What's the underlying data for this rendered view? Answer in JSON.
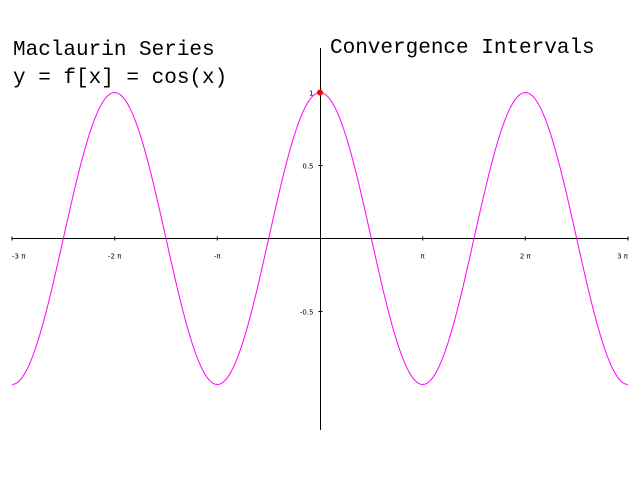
{
  "header": {
    "title_line1": "Maclaurin Series",
    "title_line2": "y = f[x] = cos(x)",
    "right_title": "Convergence Intervals"
  },
  "chart_data": {
    "type": "line",
    "function": "cos(x)",
    "xlim": [
      -9.42478,
      9.42478
    ],
    "ylim": [
      -1.3,
      1.3
    ],
    "x_ticks": [
      {
        "value": -9.42478,
        "label": "-3 π"
      },
      {
        "value": -6.28319,
        "label": "-2 π"
      },
      {
        "value": -3.14159,
        "label": "-π"
      },
      {
        "value": 3.14159,
        "label": "π"
      },
      {
        "value": 6.28319,
        "label": "2 π"
      },
      {
        "value": 9.42478,
        "label": "3 π"
      }
    ],
    "y_ticks": [
      {
        "value": 1,
        "label": "1"
      },
      {
        "value": 0.5,
        "label": "0.5"
      },
      {
        "value": -0.5,
        "label": "-0.5"
      }
    ],
    "series": [
      {
        "color": "#ff00ff",
        "samples": 361
      }
    ],
    "highlight_point": {
      "x": 0,
      "y": 1,
      "color": "#ff0000"
    },
    "grid": false,
    "legend": "none"
  }
}
